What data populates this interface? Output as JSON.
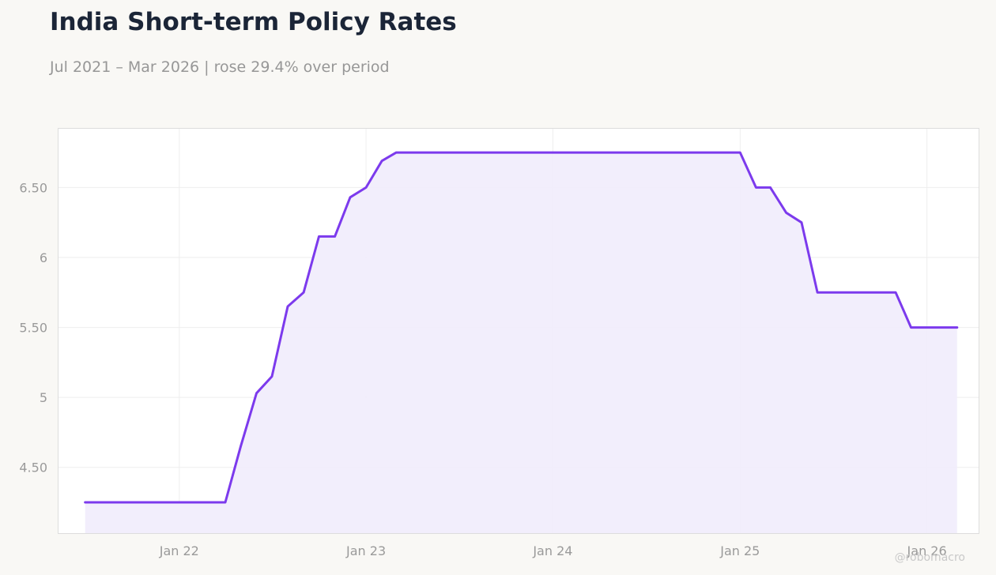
{
  "header": {
    "title": "India Short-term Policy Rates",
    "subtitle": "Jul 2021 – Mar 2026 | rose 29.4% over period"
  },
  "watermark": "@robomacro",
  "colors": {
    "background": "#f9f8f5",
    "plot_background": "#ffffff",
    "line": "#7c3aed",
    "fill": "#f1ecfc",
    "title": "#1b2537",
    "muted_text": "#979797"
  },
  "chart_data": {
    "type": "area",
    "title": "India Short-term Policy Rates",
    "subtitle": "Jul 2021 – Mar 2026 | rose 29.4% over period",
    "xlabel": "",
    "ylabel": "",
    "x_ticks": [
      "2022-01-01",
      "2023-01-01",
      "2024-01-01",
      "2025-01-01",
      "2026-01-01"
    ],
    "x_tick_labels": [
      "Jan 22",
      "Jan 23",
      "Jan 24",
      "Jan 25",
      "Jan 26"
    ],
    "y_ticks": [
      4.5,
      5,
      5.5,
      6,
      6.5
    ],
    "y_tick_labels": [
      "4.50",
      "5",
      "5.50",
      "6",
      "6.50"
    ],
    "xlim": [
      "2021-05-10",
      "2026-04-12"
    ],
    "ylim": [
      4.03,
      6.92
    ],
    "grid": true,
    "legend": "none",
    "series": [
      {
        "points": [
          [
            "2021-07-01",
            4.25
          ],
          [
            "2021-08-01",
            4.25
          ],
          [
            "2021-09-01",
            4.25
          ],
          [
            "2021-10-01",
            4.25
          ],
          [
            "2021-11-01",
            4.25
          ],
          [
            "2021-12-01",
            4.25
          ],
          [
            "2022-01-01",
            4.25
          ],
          [
            "2022-02-01",
            4.25
          ],
          [
            "2022-03-01",
            4.25
          ],
          [
            "2022-04-01",
            4.25
          ],
          [
            "2022-05-01",
            4.65
          ],
          [
            "2022-06-01",
            5.03
          ],
          [
            "2022-07-01",
            5.15
          ],
          [
            "2022-08-01",
            5.65
          ],
          [
            "2022-09-01",
            5.75
          ],
          [
            "2022-10-01",
            6.15
          ],
          [
            "2022-11-01",
            6.15
          ],
          [
            "2022-12-01",
            6.43
          ],
          [
            "2023-01-01",
            6.5
          ],
          [
            "2023-02-01",
            6.69
          ],
          [
            "2023-03-01",
            6.75
          ],
          [
            "2023-04-01",
            6.75
          ],
          [
            "2023-05-01",
            6.75
          ],
          [
            "2023-06-01",
            6.75
          ],
          [
            "2023-07-01",
            6.75
          ],
          [
            "2023-08-01",
            6.75
          ],
          [
            "2023-09-01",
            6.75
          ],
          [
            "2023-10-01",
            6.75
          ],
          [
            "2023-11-01",
            6.75
          ],
          [
            "2023-12-01",
            6.75
          ],
          [
            "2024-01-01",
            6.75
          ],
          [
            "2024-02-01",
            6.75
          ],
          [
            "2024-03-01",
            6.75
          ],
          [
            "2024-04-01",
            6.75
          ],
          [
            "2024-05-01",
            6.75
          ],
          [
            "2024-06-01",
            6.75
          ],
          [
            "2024-07-01",
            6.75
          ],
          [
            "2024-08-01",
            6.75
          ],
          [
            "2024-09-01",
            6.75
          ],
          [
            "2024-10-01",
            6.75
          ],
          [
            "2024-11-01",
            6.75
          ],
          [
            "2024-12-01",
            6.75
          ],
          [
            "2025-01-01",
            6.75
          ],
          [
            "2025-02-01",
            6.5
          ],
          [
            "2025-03-01",
            6.5
          ],
          [
            "2025-04-01",
            6.32
          ],
          [
            "2025-05-01",
            6.25
          ],
          [
            "2025-06-01",
            5.75
          ],
          [
            "2025-07-01",
            5.75
          ],
          [
            "2025-08-01",
            5.75
          ],
          [
            "2025-09-01",
            5.75
          ],
          [
            "2025-10-01",
            5.75
          ],
          [
            "2025-11-01",
            5.75
          ],
          [
            "2025-12-01",
            5.5
          ],
          [
            "2026-01-01",
            5.5
          ],
          [
            "2026-02-01",
            5.5
          ],
          [
            "2026-03-01",
            5.5
          ]
        ]
      }
    ]
  }
}
